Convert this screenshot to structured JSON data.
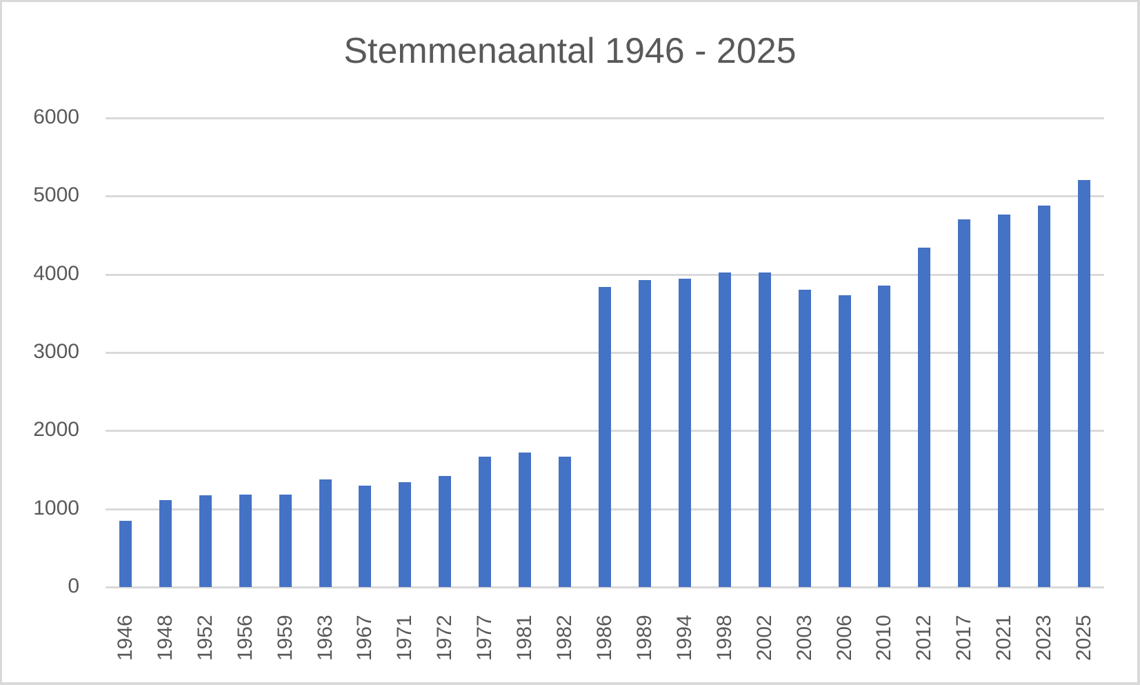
{
  "chart_data": {
    "type": "bar",
    "title": "Stemmenaantal 1946 - 2025",
    "xlabel": "",
    "ylabel": "",
    "ylim": [
      0,
      6000
    ],
    "yticks": [
      "0",
      "1000",
      "2000",
      "3000",
      "4000",
      "5000",
      "6000"
    ],
    "grid": true,
    "legend": null,
    "bar_color": "#4472c4",
    "categories": [
      "1946",
      "1948",
      "1952",
      "1956",
      "1959",
      "1963",
      "1967",
      "1971",
      "1972",
      "1977",
      "1981",
      "1982",
      "1986",
      "1989",
      "1994",
      "1998",
      "2002",
      "2003",
      "2006",
      "2010",
      "2012",
      "2017",
      "2021",
      "2023",
      "2025"
    ],
    "values": [
      845,
      1111,
      1172,
      1181,
      1181,
      1375,
      1296,
      1340,
      1420,
      1667,
      1720,
      1667,
      3840,
      3928,
      3946,
      4026,
      4026,
      3799,
      3734,
      3860,
      4344,
      4706,
      4768,
      4882,
      5209
    ]
  }
}
